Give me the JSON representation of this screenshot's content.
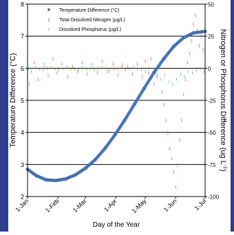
{
  "chart_data": {
    "type": "scatter",
    "xlabel": "Day of the Year",
    "ylabel_left": "Temperature Difference (°C)",
    "ylabel_right": "Nitrogen or Phosphorus Difference (ug L-1)",
    "ylabel_right_main": "Nitrogen or Phosphorus Difference (ug L",
    "ylabel_right_sup": "-1",
    "ylabel_right_close": ")",
    "x_ticks": [
      "1-Jan",
      "1-Feb",
      "1-Mar",
      "1-Apr",
      "1-May",
      "1-Jun",
      "1-Jul"
    ],
    "x_tick_days": [
      1,
      32,
      60,
      91,
      121,
      152,
      182
    ],
    "xlim": [
      1,
      182
    ],
    "left_axis": {
      "ylim": [
        2,
        8
      ],
      "ticks": [
        "2",
        "3",
        "4",
        "5",
        "6",
        "7",
        "8"
      ],
      "tick_values": [
        2,
        3,
        4,
        5,
        6,
        7,
        8
      ]
    },
    "right_axis": {
      "ylim": [
        -100,
        50
      ],
      "ticks": [
        "-100",
        "-75",
        "-50",
        "-25",
        "0",
        "25",
        "50"
      ],
      "tick_values": [
        -100,
        -75,
        -50,
        -25,
        0,
        25,
        50
      ]
    },
    "grid": "horizontal at left-axis integers",
    "legend": "top-center",
    "series": [
      {
        "name": "Temperature Difference (°C)",
        "axis": "left",
        "marker": "filled circle",
        "color": "#4a7cc7",
        "x": [
          1,
          10,
          20,
          30,
          40,
          50,
          60,
          70,
          80,
          90,
          100,
          110,
          120,
          130,
          140,
          150,
          160,
          170,
          182
        ],
        "y": [
          2.85,
          2.65,
          2.52,
          2.5,
          2.55,
          2.68,
          2.88,
          3.15,
          3.5,
          3.92,
          4.38,
          4.88,
          5.38,
          5.87,
          6.3,
          6.68,
          6.95,
          7.1,
          7.15
        ]
      },
      {
        "name": "Total Dissolved Nitrogen (µg/L)",
        "axis": "right",
        "marker": "character '1'",
        "color": "#e05050",
        "x": [
          3,
          8,
          12,
          18,
          22,
          27,
          31,
          36,
          42,
          47,
          52,
          57,
          62,
          67,
          72,
          77,
          83,
          88,
          93,
          98,
          103,
          108,
          113,
          118,
          121,
          124,
          127,
          130,
          133,
          136,
          138,
          140,
          142,
          144,
          146,
          148,
          150,
          152,
          154,
          156,
          158,
          160,
          162,
          164,
          166,
          168,
          170,
          172,
          174,
          176,
          178,
          180
        ],
        "y": [
          -12,
          5,
          -8,
          3,
          -5,
          8,
          -3,
          4,
          -6,
          2,
          -2,
          5,
          -4,
          3,
          -3,
          6,
          -2,
          4,
          -5,
          3,
          2,
          -4,
          4,
          -6,
          6,
          -3,
          8,
          -12,
          -5,
          4,
          -18,
          -28,
          -40,
          -50,
          -62,
          -70,
          -80,
          -92,
          -75,
          -55,
          -40,
          -20,
          -8,
          5,
          12,
          22,
          35,
          42,
          30,
          18,
          25,
          15
        ]
      },
      {
        "name": "Dissolved Phosphorus (µg/L)",
        "axis": "right",
        "marker": "character 'i'",
        "color": "#33aa33",
        "x": [
          2,
          5,
          9,
          13,
          17,
          21,
          25,
          29,
          33,
          37,
          41,
          45,
          49,
          53,
          57,
          61,
          65,
          69,
          73,
          77,
          81,
          85,
          89,
          93,
          97,
          101,
          105,
          109,
          113,
          117,
          121,
          125,
          129,
          133,
          137,
          141,
          145,
          149,
          153,
          157,
          161,
          165,
          169,
          173,
          177,
          181
        ],
        "y": [
          0,
          -2,
          1,
          0,
          -1,
          0,
          1,
          0,
          -1,
          0,
          1,
          0,
          0,
          -1,
          1,
          0,
          0,
          -1,
          0,
          1,
          0,
          -1,
          0,
          0,
          1,
          -1,
          0,
          1,
          0,
          -1,
          -2,
          0,
          -4,
          -6,
          -8,
          -5,
          -10,
          -12,
          -8,
          -4,
          -6,
          -2,
          -3,
          -1,
          0,
          -2
        ]
      }
    ]
  }
}
